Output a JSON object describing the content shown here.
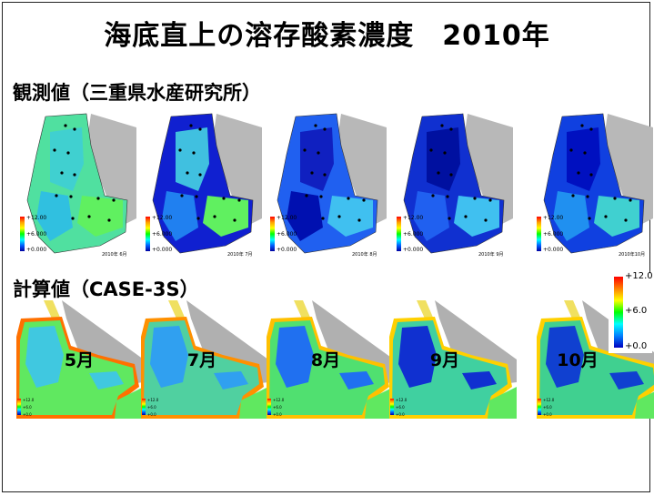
{
  "title": "海底直上の溶存酸素濃度　2010年",
  "sections": {
    "observed": "観測値（三重県水産研究所）",
    "calculated": "計算値（CASE-3S）"
  },
  "observed_scale": {
    "max": "+12.00",
    "mid": "+6.000",
    "min": "+0.000"
  },
  "observed_dates": [
    "2010年 6月",
    "2010年 7月",
    "2010年 8月",
    "2010年 9月",
    "2010年10月"
  ],
  "calc_scale": {
    "max": "+12.0",
    "mid": "+6.0",
    "min": "+0.0"
  },
  "months": [
    "5月",
    "7月",
    "8月",
    "9月",
    "10月"
  ]
}
